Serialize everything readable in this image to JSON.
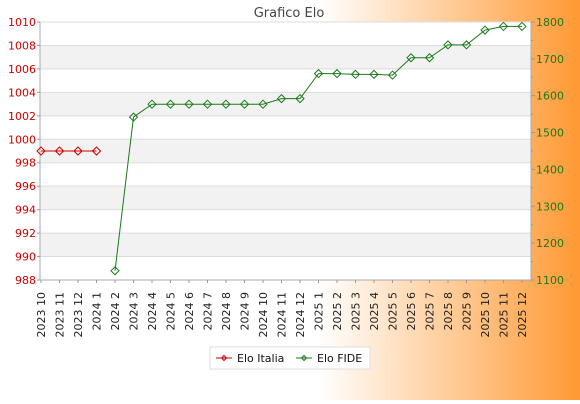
{
  "chart_data": {
    "type": "line",
    "title": "Grafico Elo",
    "categories": [
      "2023 10",
      "2023 11",
      "2023 12",
      "2024 1",
      "2024 2",
      "2024 3",
      "2024 4",
      "2024 5",
      "2024 6",
      "2024 7",
      "2024 8",
      "2024 9",
      "2024 10",
      "2024 11",
      "2024 12",
      "2025 1",
      "2025 2",
      "2025 3",
      "2025 4",
      "2025 5",
      "2025 6",
      "2025 7",
      "2025 8",
      "2025 9",
      "2025 10",
      "2025 11",
      "2025 12"
    ],
    "y_left": {
      "ticks": [
        "988",
        "990",
        "992",
        "994",
        "996",
        "998",
        "1000",
        "1002",
        "1004",
        "1006",
        "1008",
        "1010"
      ],
      "range": [
        988,
        1010
      ],
      "color": "#cc0000"
    },
    "y_right": {
      "ticks": [
        "1100",
        "1200",
        "1300",
        "1400",
        "1500",
        "1600",
        "1700",
        "1800"
      ],
      "range": [
        1100,
        1800
      ],
      "color": "#1a7a1a"
    },
    "series": [
      {
        "name": "Elo Italia",
        "axis": "left",
        "color": "#cc0000",
        "values": [
          999,
          999,
          999,
          999,
          null,
          null,
          null,
          null,
          null,
          null,
          null,
          null,
          null,
          null,
          null,
          null,
          null,
          null,
          null,
          null,
          null,
          null,
          null,
          null,
          null,
          null,
          null
        ]
      },
      {
        "name": "Elo FIDE",
        "axis": "right",
        "color": "#1a7a1a",
        "values": [
          null,
          null,
          null,
          null,
          1125,
          1542,
          1577,
          1577,
          1577,
          1577,
          1577,
          1577,
          1577,
          1592,
          1592,
          1660,
          1660,
          1658,
          1658,
          1656,
          1703,
          1703,
          1738,
          1738,
          1778,
          1788,
          1788
        ]
      }
    ],
    "grid": true,
    "legend_position": "bottom",
    "colors": {
      "background_left": "#ffffff",
      "background_right": "#ff9933",
      "plot_band": "#f2f2f2"
    }
  }
}
